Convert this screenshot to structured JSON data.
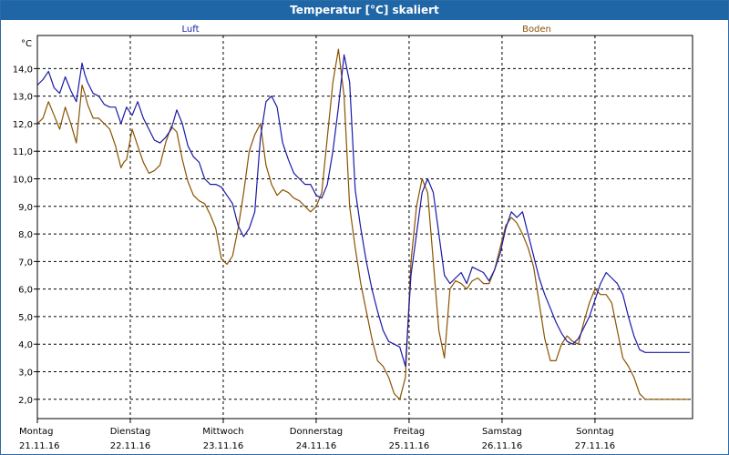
{
  "window": {
    "title": "Temperatur [°C] skaliert"
  },
  "chart_data": {
    "type": "line",
    "title": "Temperatur [°C] skaliert",
    "ylabel": "°C",
    "xlabel": "",
    "ylim": [
      1.3,
      15.2
    ],
    "xlim": [
      0,
      7.05
    ],
    "yticks": [
      "2,0",
      "3,0",
      "4,0",
      "5,0",
      "6,0",
      "7,0",
      "8,0",
      "9,0",
      "10,0",
      "11,0",
      "12,0",
      "13,0",
      "14,0"
    ],
    "xticks": [
      {
        "day": "Montag",
        "date": "21.11.16"
      },
      {
        "day": "Dienstag",
        "date": "22.11.16"
      },
      {
        "day": "Mittwoch",
        "date": "23.11.16"
      },
      {
        "day": "Donnerstag",
        "date": "24.11.16"
      },
      {
        "day": "Freitag",
        "date": "25.11.16"
      },
      {
        "day": "Samstag",
        "date": "26.11.16"
      },
      {
        "day": "Sonntag",
        "date": "27.11.16"
      }
    ],
    "grid": true,
    "colors": {
      "Luft": "#1a1aa8",
      "Boden": "#8a5300"
    },
    "series": [
      {
        "name": "Luft",
        "x": [
          0,
          0.06,
          0.12,
          0.18,
          0.24,
          0.3,
          0.36,
          0.42,
          0.48,
          0.51,
          0.54,
          0.6,
          0.66,
          0.72,
          0.78,
          0.84,
          0.9,
          0.93,
          0.96,
          1.02,
          1.08,
          1.14,
          1.2,
          1.26,
          1.32,
          1.38,
          1.44,
          1.5,
          1.56,
          1.62,
          1.68,
          1.74,
          1.8,
          1.86,
          1.92,
          1.98,
          2.04,
          2.1,
          2.16,
          2.22,
          2.28,
          2.34,
          2.4,
          2.46,
          2.52,
          2.58,
          2.64,
          2.7,
          2.76,
          2.82,
          2.88,
          2.94,
          3,
          3.06,
          3.12,
          3.18,
          3.24,
          3.3,
          3.36,
          3.42,
          3.48,
          3.54,
          3.6,
          3.66,
          3.72,
          3.78,
          3.84,
          3.9,
          3.96,
          4.02,
          4.08,
          4.14,
          4.2,
          4.26,
          4.32,
          4.38,
          4.44,
          4.5,
          4.56,
          4.62,
          4.68,
          4.74,
          4.8,
          4.86,
          4.92,
          4.98,
          5.04,
          5.1,
          5.16,
          5.22,
          5.28,
          5.34,
          5.4,
          5.46,
          5.52,
          5.58,
          5.64,
          5.7,
          5.76,
          5.82,
          5.88,
          5.94,
          6,
          6.06,
          6.12,
          6.18,
          6.24,
          6.3,
          6.36,
          6.42,
          6.48,
          6.54,
          6.6,
          6.66,
          6.72,
          6.78,
          6.84,
          6.9,
          6.96,
          7.02
        ],
        "values": [
          13.4,
          13.6,
          13.9,
          13.3,
          13.1,
          13.7,
          13.2,
          12.8,
          14.2,
          13.8,
          13.5,
          13.1,
          13.0,
          12.7,
          12.6,
          12.6,
          12.0,
          12.3,
          12.6,
          12.3,
          12.8,
          12.2,
          11.8,
          11.4,
          11.3,
          11.5,
          11.8,
          12.5,
          12.0,
          11.2,
          10.8,
          10.6,
          10.0,
          9.8,
          9.8,
          9.7,
          9.4,
          9.1,
          8.3,
          7.9,
          8.2,
          8.8,
          11.5,
          12.8,
          13.0,
          12.6,
          11.3,
          10.7,
          10.2,
          10.0,
          9.8,
          9.8,
          9.4,
          9.3,
          9.8,
          11.0,
          12.6,
          14.5,
          13.5,
          9.6,
          8.2,
          7.0,
          6.0,
          5.2,
          4.5,
          4.1,
          4.0,
          3.9,
          3.2,
          6.5,
          8.0,
          9.5,
          10.0,
          9.5,
          8.0,
          6.5,
          6.2,
          6.4,
          6.6,
          6.2,
          6.8,
          6.7,
          6.6,
          6.3,
          6.7,
          7.3,
          8.2,
          8.8,
          8.6,
          8.8,
          8.0,
          7.2,
          6.4,
          5.8,
          5.3,
          4.8,
          4.4,
          4.1,
          4.0,
          4.2,
          4.6,
          5.0,
          5.6,
          6.2,
          6.6,
          6.4,
          6.2,
          5.8,
          5.0,
          4.3,
          3.8,
          3.7,
          3.7,
          3.7,
          3.7,
          3.7,
          3.7,
          3.7,
          3.7,
          3.7
        ]
      },
      {
        "name": "Boden",
        "x": [
          0,
          0.06,
          0.12,
          0.18,
          0.24,
          0.3,
          0.36,
          0.42,
          0.48,
          0.51,
          0.54,
          0.6,
          0.66,
          0.72,
          0.78,
          0.84,
          0.9,
          0.93,
          0.96,
          1.02,
          1.08,
          1.14,
          1.2,
          1.26,
          1.32,
          1.38,
          1.44,
          1.5,
          1.56,
          1.62,
          1.68,
          1.74,
          1.8,
          1.86,
          1.92,
          1.98,
          2.04,
          2.1,
          2.16,
          2.22,
          2.28,
          2.34,
          2.4,
          2.46,
          2.52,
          2.58,
          2.64,
          2.7,
          2.76,
          2.82,
          2.88,
          2.94,
          3,
          3.06,
          3.12,
          3.18,
          3.24,
          3.3,
          3.36,
          3.42,
          3.48,
          3.54,
          3.6,
          3.66,
          3.72,
          3.78,
          3.84,
          3.9,
          3.96,
          4.02,
          4.08,
          4.14,
          4.2,
          4.26,
          4.32,
          4.38,
          4.44,
          4.5,
          4.56,
          4.62,
          4.68,
          4.74,
          4.8,
          4.86,
          4.92,
          4.98,
          5.04,
          5.1,
          5.16,
          5.22,
          5.28,
          5.34,
          5.4,
          5.46,
          5.52,
          5.58,
          5.64,
          5.7,
          5.76,
          5.82,
          5.88,
          5.94,
          6,
          6.06,
          6.12,
          6.18,
          6.24,
          6.3,
          6.36,
          6.42,
          6.48,
          6.54,
          6.6,
          6.66,
          6.72,
          6.78,
          6.84,
          6.9,
          6.96,
          7.02
        ],
        "values": [
          12.0,
          12.2,
          12.8,
          12.3,
          11.8,
          12.6,
          12.0,
          11.3,
          13.4,
          13.1,
          12.7,
          12.2,
          12.2,
          12.0,
          11.8,
          11.2,
          10.4,
          10.6,
          10.7,
          11.8,
          11.2,
          10.6,
          10.2,
          10.3,
          10.5,
          11.3,
          11.9,
          11.7,
          10.7,
          9.9,
          9.4,
          9.2,
          9.1,
          8.7,
          8.2,
          7.1,
          6.9,
          7.2,
          8.2,
          9.5,
          11.0,
          11.6,
          12.0,
          10.5,
          9.8,
          9.4,
          9.6,
          9.5,
          9.3,
          9.2,
          9.0,
          8.8,
          9.0,
          9.5,
          11.5,
          13.5,
          14.7,
          13.0,
          9.0,
          7.5,
          6.2,
          5.2,
          4.2,
          3.4,
          3.2,
          2.8,
          2.2,
          2.0,
          2.8,
          7.0,
          9.0,
          10.0,
          9.5,
          7.0,
          4.5,
          3.5,
          6.0,
          6.3,
          6.2,
          6.0,
          6.3,
          6.4,
          6.2,
          6.2,
          6.7,
          7.5,
          8.3,
          8.6,
          8.4,
          8.0,
          7.5,
          6.8,
          5.5,
          4.2,
          3.4,
          3.4,
          4.0,
          4.3,
          4.1,
          4.0,
          4.8,
          5.5,
          6.0,
          5.8,
          5.8,
          5.5,
          4.5,
          3.5,
          3.2,
          2.8,
          2.2,
          2.0,
          2.0,
          2.0,
          2.0,
          2.0,
          2.0,
          2.0,
          2.0,
          2.0
        ]
      }
    ]
  }
}
